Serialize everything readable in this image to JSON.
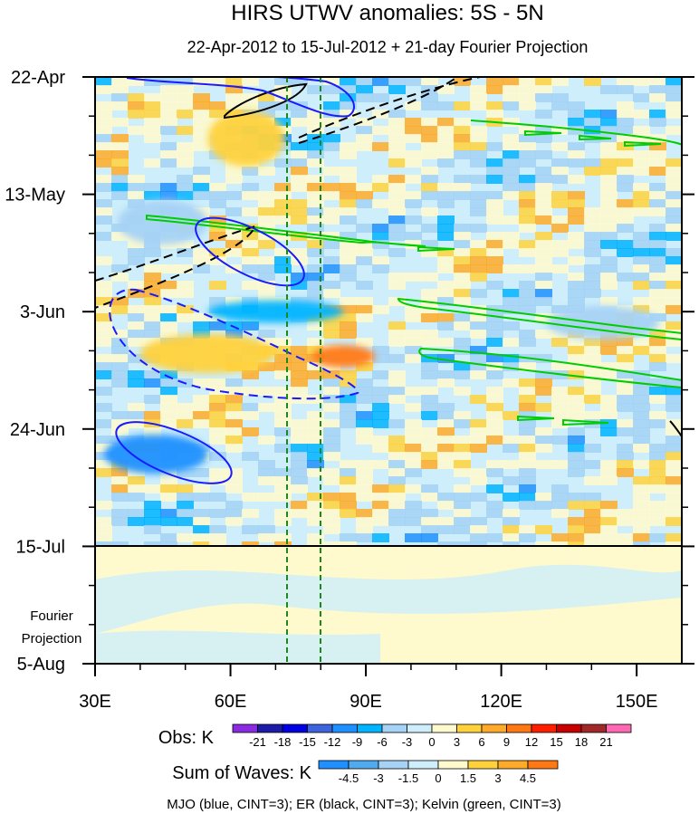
{
  "chart_data": {
    "type": "heatmap",
    "title": "HIRS UTWV anomalies: 5S - 5N",
    "subtitle": "22-Apr-2012 to 15-Jul-2012 + 21-day Fourier Projection",
    "x_axis": {
      "range": [
        30,
        160
      ],
      "ticks": [
        {
          "value": 30,
          "label": "30E"
        },
        {
          "value": 60,
          "label": "60E"
        },
        {
          "value": 90,
          "label": "90E"
        },
        {
          "value": 120,
          "label": "120E"
        },
        {
          "value": 150,
          "label": "150E"
        }
      ]
    },
    "y_axis": {
      "range": [
        "2012-04-22",
        "2012-08-05"
      ],
      "ticks": [
        {
          "date": "2012-04-22",
          "label": "22-Apr"
        },
        {
          "date": "2012-05-13",
          "label": "13-May"
        },
        {
          "date": "2012-06-03",
          "label": "3-Jun"
        },
        {
          "date": "2012-06-24",
          "label": "24-Jun"
        },
        {
          "date": "2012-07-15",
          "label": "15-Jul"
        },
        {
          "date": "2012-08-05",
          "label": "5-Aug"
        }
      ]
    },
    "observation_end": "2012-07-15",
    "projection_label": [
      "Fourier",
      "Projection"
    ],
    "reference_lines_x": [
      72,
      80
    ],
    "obs_colorbar": {
      "label": "Obs: K",
      "levels": [
        "-21",
        "-18",
        "-15",
        "-12",
        "-9",
        "-6",
        "-3",
        "0",
        "3",
        "6",
        "9",
        "12",
        "15",
        "18",
        "21"
      ],
      "colors": [
        "#8a2be2",
        "#1c1ca8",
        "#0000e0",
        "#3c64dc",
        "#1e90ff",
        "#00b4ff",
        "#a5d2f5",
        "#cdeefa",
        "#fffacd",
        "#ffd23c",
        "#ffaa28",
        "#ff7814",
        "#ff1e00",
        "#c80000",
        "#a02828",
        "#ff69b4"
      ]
    },
    "waves_colorbar": {
      "label": "Sum of Waves: K",
      "levels": [
        "-4.5",
        "-3",
        "-1.5",
        "0",
        "1.5",
        "3",
        "4.5"
      ],
      "colors": [
        "#1e90ff",
        "#50aaf0",
        "#a5d2f5",
        "#cdeefa",
        "#fffacd",
        "#ffd23c",
        "#ffaa28",
        "#ff7814"
      ]
    },
    "contours": [
      {
        "name": "MJO",
        "color": "#1a1aff",
        "cint": 3
      },
      {
        "name": "ER",
        "color": "#000000",
        "cint": 3
      },
      {
        "name": "Kelvin",
        "color": "#00cc00",
        "cint": 3
      }
    ],
    "legend_text": "MJO (blue, CINT=3); ER (black, CINT=3); Kelvin (green, CINT=3)",
    "anomaly_features": [
      {
        "lon": [
          55,
          72
        ],
        "date": [
          "2012-04-28",
          "2012-05-08"
        ],
        "sign": "positive",
        "level": 6
      },
      {
        "lon": [
          35,
          55
        ],
        "date": [
          "2012-05-14",
          "2012-05-22"
        ],
        "sign": "negative",
        "level": -3
      },
      {
        "lon": [
          40,
          70
        ],
        "date": [
          "2012-06-07",
          "2012-06-14"
        ],
        "sign": "positive",
        "level": 6
      },
      {
        "lon": [
          78,
          92
        ],
        "date": [
          "2012-06-09",
          "2012-06-13"
        ],
        "sign": "positive",
        "level": 12
      },
      {
        "lon": [
          32,
          55
        ],
        "date": [
          "2012-06-25",
          "2012-07-02"
        ],
        "sign": "negative",
        "level": -9
      },
      {
        "lon": [
          55,
          85
        ],
        "date": [
          "2012-06-01",
          "2012-06-05"
        ],
        "sign": "negative",
        "level": -6
      },
      {
        "lon": [
          130,
          155
        ],
        "date": [
          "2012-06-02",
          "2012-06-08"
        ],
        "sign": "negative",
        "level": -3
      }
    ]
  }
}
